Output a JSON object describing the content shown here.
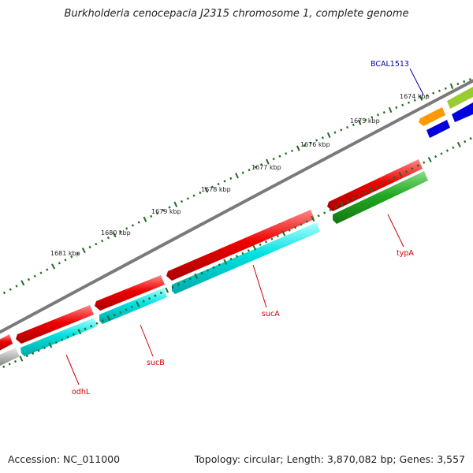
{
  "title": "Burkholderia cenocepacia J2315 chromosome 1, complete genome",
  "footer": {
    "accession": "Accession: NC_011000",
    "summary": "Topology: circular; Length: 3,870,082 bp; Genes: 3,557"
  },
  "colors": {
    "backbone": "#7a7a7a",
    "tick": "#1f6b1f",
    "cds": "#ee0000",
    "cds_alt": "#00e0e0",
    "trna": "#22aa22",
    "other": "#0000dd",
    "pseudo": "#ff9900",
    "rna": "#99cc33",
    "misc": "#bbbbbb",
    "label_red": "#cc0000",
    "label_blue": "#0000aa"
  },
  "scale_labels": [
    "1674 kbp",
    "1675 kbp",
    "1676 kbp",
    "1677 kbp",
    "1678 kbp",
    "1679 kbp",
    "1680 kbp",
    "1681 kbp"
  ],
  "gene_labels": [
    {
      "id": "BCAL1513",
      "text": "BCAL1513",
      "color": "#0000aa"
    },
    {
      "id": "typA",
      "text": "typA",
      "color": "#cc0000"
    },
    {
      "id": "sucA",
      "text": "sucA",
      "color": "#cc0000"
    },
    {
      "id": "sucB",
      "text": "sucB",
      "color": "#cc0000"
    },
    {
      "id": "odhL",
      "text": "odhL",
      "color": "#cc0000"
    }
  ]
}
